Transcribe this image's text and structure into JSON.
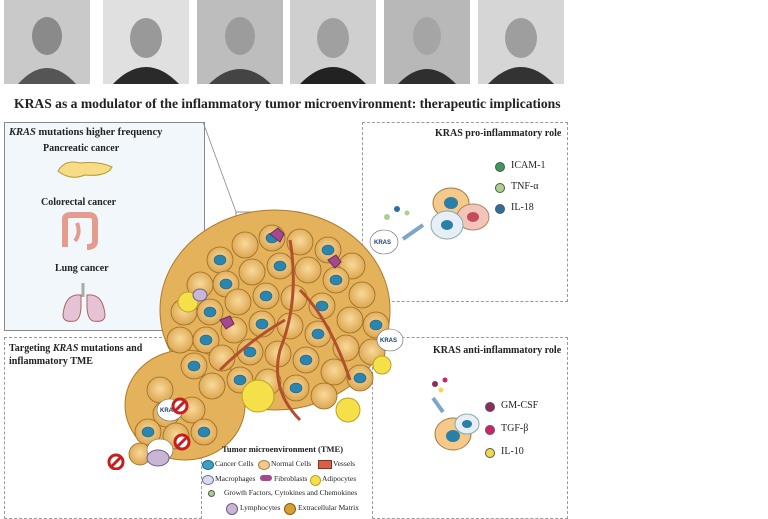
{
  "title": "KRAS as a modulator of the inflammatory tumor microenvironment: therapeutic implications",
  "left_panel": {
    "heading_italic": "KRAS",
    "heading_rest": " mutations higher frequency",
    "cancers": [
      "Pancreatic cancer",
      "Colorectal cancer",
      "Lung cancer"
    ]
  },
  "pro_panel": {
    "heading": "KRAS pro-inflammatory role",
    "items": [
      {
        "label": "ICAM-1",
        "color": "#3a9a5a"
      },
      {
        "label": "TNF-α",
        "color": "#a9d08e"
      },
      {
        "label": "IL-18",
        "color": "#2c6f9e"
      }
    ]
  },
  "anti_panel": {
    "heading": "KRAS anti-inflammatory role",
    "items": [
      {
        "label": "GM-CSF",
        "color": "#8e2a5c"
      },
      {
        "label": "TGF-β",
        "color": "#d4206c"
      },
      {
        "label": "IL-10",
        "color": "#f2d84a"
      }
    ]
  },
  "target_panel": {
    "line1_pre": "Targeting ",
    "line1_italic": "KRAS",
    "line1_post": " mutations and",
    "line2": "inflammatory TME"
  },
  "legend": {
    "title": "Tumor microenvironment (TME)",
    "items": [
      "Cancer Cells",
      "Normal Cells",
      "Vessels",
      "Macrophages",
      "Fibroblasts",
      "Adipocytes",
      "Growth Factors, Cytokines and Chemokines",
      "Lymphocytes",
      "Extracellular Matrix"
    ]
  },
  "cell_label": "KRAS"
}
